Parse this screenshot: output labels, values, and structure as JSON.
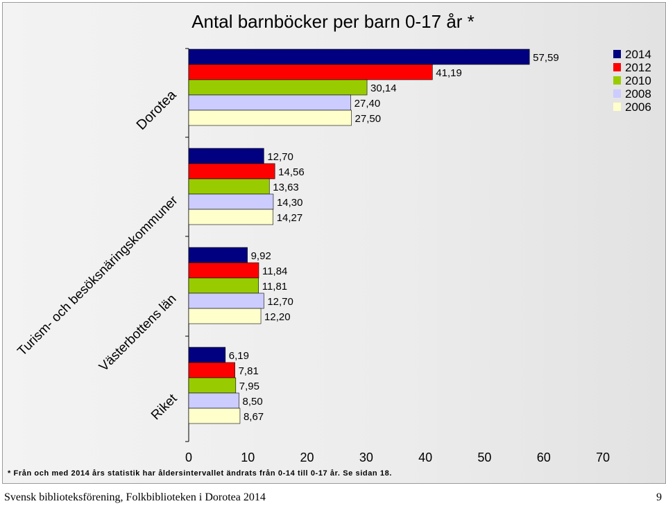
{
  "chart_data": {
    "type": "bar",
    "orientation": "horizontal",
    "title": "Antal barnböcker per barn 0-17 år *",
    "categories": [
      "Dorotea",
      "Turism- och besöksnäringskommuner",
      "Västerbottens län",
      "Riket"
    ],
    "series": [
      {
        "name": "2014",
        "color": "#000080",
        "values": [
          57.59,
          12.7,
          9.92,
          6.19
        ],
        "labels": [
          "57,59",
          "12,70",
          "9,92",
          "6,19"
        ]
      },
      {
        "name": "2012",
        "color": "#ff0000",
        "values": [
          41.19,
          14.56,
          11.84,
          7.81
        ],
        "labels": [
          "41,19",
          "14,56",
          "11,84",
          "7,81"
        ]
      },
      {
        "name": "2010",
        "color": "#99cc00",
        "values": [
          30.14,
          13.63,
          11.81,
          7.95
        ],
        "labels": [
          "30,14",
          "13,63",
          "11,81",
          "7,95"
        ]
      },
      {
        "name": "2008",
        "color": "#ccccff",
        "values": [
          27.4,
          14.3,
          12.7,
          8.5
        ],
        "labels": [
          "27,40",
          "14,30",
          "12,70",
          "8,50"
        ]
      },
      {
        "name": "2006",
        "color": "#ffffcc",
        "values": [
          27.5,
          14.27,
          12.2,
          8.67
        ],
        "labels": [
          "27,50",
          "14,27",
          "12,20",
          "8,67"
        ]
      }
    ],
    "xlim": [
      0,
      70
    ],
    "xticks": [
      "0",
      "10",
      "20",
      "30",
      "40",
      "50",
      "60",
      "70"
    ],
    "grid": false,
    "legend_position": "top-right"
  },
  "note": "* Från och med 2014 års statistik har åldersintervallet ändrats från 0-14 till 0-17 år. Se sidan 18.",
  "footer": {
    "source": "Svensk biblioteksförening, Folkbiblioteken i Dorotea 2014",
    "page_number": "9"
  }
}
